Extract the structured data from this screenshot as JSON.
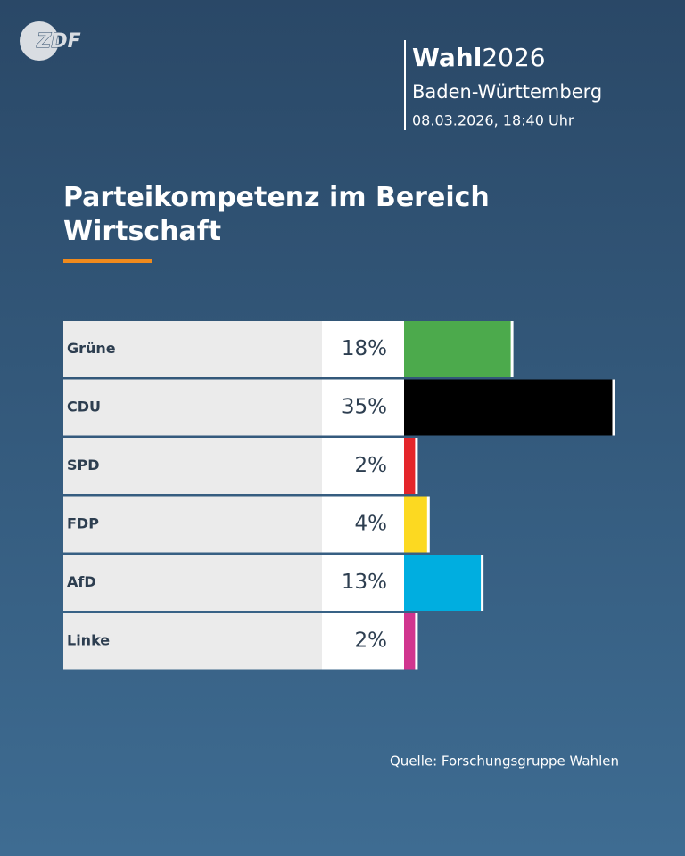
{
  "header": {
    "logo": "ZDF",
    "brand": "Wahl",
    "year": "2026",
    "region": "Baden-Württemberg",
    "timestamp": "08.03.2026, 18:40 Uhr"
  },
  "chart_data": {
    "type": "bar",
    "orientation": "horizontal",
    "title": "Parteikompetenz im Bereich Wirtschaft",
    "categories": [
      "Grüne",
      "CDU",
      "SPD",
      "FDP",
      "AfD",
      "Linke"
    ],
    "values": [
      18,
      35,
      2,
      4,
      13,
      2
    ],
    "value_labels": [
      "18%",
      "35%",
      "2%",
      "4%",
      "13%",
      "2%"
    ],
    "colors": [
      "#4caa4c",
      "#000000",
      "#e4252a",
      "#fcd921",
      "#00aee0",
      "#d1358f"
    ],
    "source": "Quelle: Forschungsgruppe Wahlen"
  }
}
